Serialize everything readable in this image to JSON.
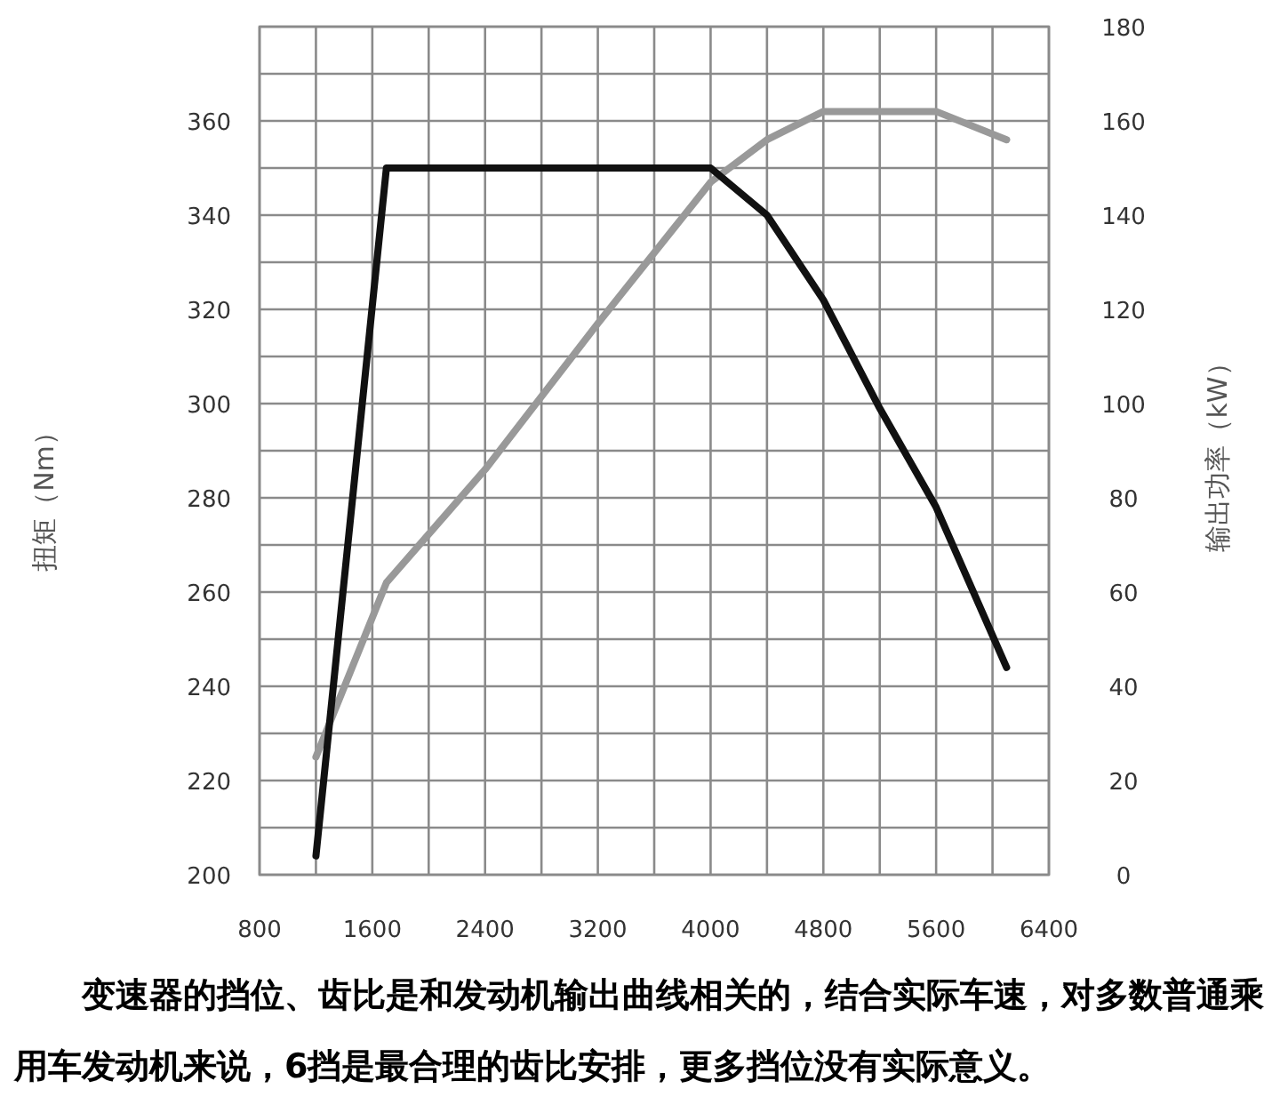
{
  "chart_data": {
    "type": "line",
    "ylabel": "扭矩（Nm）",
    "y2label": "输出功率（kW）",
    "annotations": [
      "变速器的挡位、齿比是和发动机输出曲线相关的，结合实际车速，对多数普通乘用车发动机来说，6挡是最合理的齿比安排，更多挡位没有实际意义。"
    ],
    "xlim": [
      800,
      6400
    ],
    "xticks": [
      800,
      {
        "value": 1200,
        "label": null
      },
      1600,
      {
        "value": 2000,
        "label": null
      },
      2400,
      {
        "value": 2800,
        "label": null
      },
      3200,
      {
        "value": 3600,
        "label": null
      },
      4000,
      {
        "value": 4400,
        "label": null
      },
      4800,
      {
        "value": 5200,
        "label": null
      },
      5600,
      {
        "value": 6000,
        "label": null
      },
      6400
    ],
    "ylim": [
      200,
      380
    ],
    "yticks": [
      200,
      {
        "value": 210,
        "label": null
      },
      220,
      {
        "value": 230,
        "label": null
      },
      240,
      {
        "value": 250,
        "label": null
      },
      260,
      {
        "value": 270,
        "label": null
      },
      280,
      {
        "value": 290,
        "label": null
      },
      300,
      {
        "value": 310,
        "label": null
      },
      320,
      {
        "value": 330,
        "label": null
      },
      340,
      {
        "value": 350,
        "label": null
      },
      360,
      {
        "value": 370,
        "label": null
      },
      {
        "value": 380,
        "label": null
      }
    ],
    "y2lim": [
      0,
      180
    ],
    "y2ticks": [
      0,
      20,
      40,
      60,
      80,
      100,
      120,
      140,
      160,
      180
    ],
    "grid": true,
    "marker": "none",
    "line_style": "solid",
    "series": [
      {
        "color": "#999999",
        "axis": "y2",
        "x": [
          1200,
          1700,
          2400,
          3200,
          4000,
          4400,
          4800,
          5600,
          6100
        ],
        "values": [
          25,
          62,
          86,
          117,
          147,
          156,
          162,
          162,
          156
        ]
      },
      {
        "color": "#111111",
        "x": [
          1200,
          1700,
          4000,
          4400,
          4800,
          5200,
          5600,
          6100
        ],
        "values": [
          204,
          350,
          350,
          340,
          322,
          299,
          278,
          244
        ]
      }
    ]
  }
}
